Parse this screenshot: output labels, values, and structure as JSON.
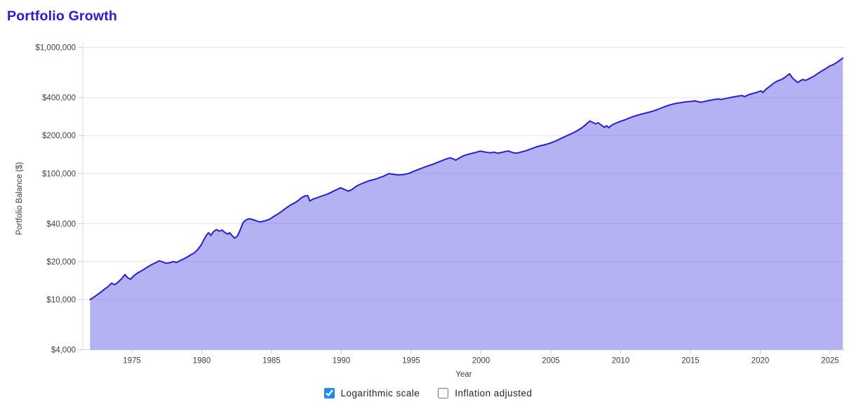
{
  "header": {
    "title": "Portfolio Growth"
  },
  "colors": {
    "title": "#2d16e0",
    "line": "#2620d6",
    "fill": "rgba(79,71,226,0.42)",
    "grid": "#e3e3ea",
    "axis_line": "#d9d9e2",
    "tick": "#c7c7d0",
    "label": "#3e3e48",
    "checkbox_accent": "#2189f3"
  },
  "controls": {
    "checkboxes": [
      {
        "label": "Logarithmic scale",
        "checked": true
      },
      {
        "label": "Inflation adjusted",
        "checked": false
      }
    ]
  },
  "chart_data": {
    "type": "area",
    "title": "Portfolio Growth",
    "xlabel": "Year",
    "ylabel": "Portfolio Balance ($)",
    "y_scale": "log",
    "grid": "horizontal-only",
    "legend": "none",
    "x_range": [
      1972,
      2026.2
    ],
    "y_range": [
      4000,
      1000000
    ],
    "x_ticks": [
      1975,
      1980,
      1985,
      1990,
      1995,
      2000,
      2005,
      2010,
      2015,
      2020,
      2025
    ],
    "y_ticks": [
      {
        "value": 1000000,
        "label": "$1,000,000"
      },
      {
        "value": 400000,
        "label": "$400,000"
      },
      {
        "value": 200000,
        "label": "$200,000"
      },
      {
        "value": 100000,
        "label": "$100,000"
      },
      {
        "value": 40000,
        "label": "$40,000"
      },
      {
        "value": 20000,
        "label": "$20,000"
      },
      {
        "value": 10000,
        "label": "$10,000"
      },
      {
        "value": 4000,
        "label": "$4,000"
      }
    ],
    "series": [
      {
        "name": "Portfolio Balance",
        "points": [
          [
            1972.0,
            10000
          ],
          [
            1972.25,
            10400
          ],
          [
            1972.5,
            10900
          ],
          [
            1972.75,
            11400
          ],
          [
            1973.0,
            12000
          ],
          [
            1973.3,
            12700
          ],
          [
            1973.55,
            13500
          ],
          [
            1973.75,
            13100
          ],
          [
            1974.0,
            13700
          ],
          [
            1974.25,
            14600
          ],
          [
            1974.5,
            15800
          ],
          [
            1974.7,
            14900
          ],
          [
            1974.9,
            14500
          ],
          [
            1975.1,
            15300
          ],
          [
            1975.35,
            16100
          ],
          [
            1975.6,
            16700
          ],
          [
            1975.85,
            17300
          ],
          [
            1976.1,
            18100
          ],
          [
            1976.4,
            18900
          ],
          [
            1976.7,
            19600
          ],
          [
            1976.95,
            20300
          ],
          [
            1977.2,
            19900
          ],
          [
            1977.45,
            19400
          ],
          [
            1977.7,
            19600
          ],
          [
            1977.95,
            20000
          ],
          [
            1978.2,
            19700
          ],
          [
            1978.45,
            20400
          ],
          [
            1978.7,
            21000
          ],
          [
            1978.95,
            21700
          ],
          [
            1979.2,
            22600
          ],
          [
            1979.45,
            23400
          ],
          [
            1979.7,
            24800
          ],
          [
            1979.95,
            27000
          ],
          [
            1980.15,
            29800
          ],
          [
            1980.35,
            32600
          ],
          [
            1980.5,
            33900
          ],
          [
            1980.65,
            32200
          ],
          [
            1980.85,
            34600
          ],
          [
            1981.05,
            35900
          ],
          [
            1981.25,
            34900
          ],
          [
            1981.45,
            35600
          ],
          [
            1981.65,
            34100
          ],
          [
            1981.85,
            33100
          ],
          [
            1982.0,
            33900
          ],
          [
            1982.15,
            32400
          ],
          [
            1982.35,
            30700
          ],
          [
            1982.55,
            31800
          ],
          [
            1982.75,
            35500
          ],
          [
            1982.95,
            40600
          ],
          [
            1983.15,
            42700
          ],
          [
            1983.4,
            43800
          ],
          [
            1983.65,
            43100
          ],
          [
            1983.9,
            42200
          ],
          [
            1984.15,
            41200
          ],
          [
            1984.4,
            41800
          ],
          [
            1984.65,
            42500
          ],
          [
            1984.9,
            43600
          ],
          [
            1985.15,
            45600
          ],
          [
            1985.4,
            47400
          ],
          [
            1985.65,
            49300
          ],
          [
            1985.9,
            51800
          ],
          [
            1986.15,
            54200
          ],
          [
            1986.4,
            56600
          ],
          [
            1986.65,
            58400
          ],
          [
            1986.9,
            60900
          ],
          [
            1987.15,
            64300
          ],
          [
            1987.4,
            66400
          ],
          [
            1987.6,
            66800
          ],
          [
            1987.75,
            60400
          ],
          [
            1987.95,
            62600
          ],
          [
            1988.2,
            63900
          ],
          [
            1988.45,
            65400
          ],
          [
            1988.7,
            66900
          ],
          [
            1988.95,
            68300
          ],
          [
            1989.2,
            70300
          ],
          [
            1989.45,
            72600
          ],
          [
            1989.7,
            74800
          ],
          [
            1989.95,
            77000
          ],
          [
            1990.25,
            74500
          ],
          [
            1990.5,
            72500
          ],
          [
            1990.75,
            74500
          ],
          [
            1991.0,
            78300
          ],
          [
            1991.25,
            81200
          ],
          [
            1991.5,
            83400
          ],
          [
            1991.75,
            85600
          ],
          [
            1992.0,
            87700
          ],
          [
            1992.25,
            89100
          ],
          [
            1992.5,
            90600
          ],
          [
            1992.75,
            92800
          ],
          [
            1993.0,
            94900
          ],
          [
            1993.2,
            97300
          ],
          [
            1993.4,
            99800
          ],
          [
            1993.6,
            99100
          ],
          [
            1993.85,
            98200
          ],
          [
            1994.1,
            97300
          ],
          [
            1994.35,
            97900
          ],
          [
            1994.6,
            98700
          ],
          [
            1994.85,
            100300
          ],
          [
            1995.1,
            103100
          ],
          [
            1995.35,
            105900
          ],
          [
            1995.6,
            108600
          ],
          [
            1995.85,
            111200
          ],
          [
            1996.1,
            113800
          ],
          [
            1996.35,
            116300
          ],
          [
            1996.6,
            118900
          ],
          [
            1996.85,
            121900
          ],
          [
            1997.1,
            125200
          ],
          [
            1997.35,
            128400
          ],
          [
            1997.6,
            131200
          ],
          [
            1997.8,
            133300
          ],
          [
            1998.0,
            130700
          ],
          [
            1998.2,
            127600
          ],
          [
            1998.45,
            132900
          ],
          [
            1998.7,
            137400
          ],
          [
            1998.95,
            140600
          ],
          [
            1999.2,
            143100
          ],
          [
            1999.45,
            145400
          ],
          [
            1999.7,
            147900
          ],
          [
            1999.95,
            150400
          ],
          [
            2000.2,
            148700
          ],
          [
            2000.45,
            146800
          ],
          [
            2000.7,
            145900
          ],
          [
            2000.95,
            147600
          ],
          [
            2001.2,
            144900
          ],
          [
            2001.45,
            146700
          ],
          [
            2001.7,
            148900
          ],
          [
            2001.95,
            150800
          ],
          [
            2002.2,
            147700
          ],
          [
            2002.45,
            144900
          ],
          [
            2002.7,
            146400
          ],
          [
            2002.95,
            148800
          ],
          [
            2003.2,
            151300
          ],
          [
            2003.45,
            154800
          ],
          [
            2003.7,
            158600
          ],
          [
            2003.95,
            162300
          ],
          [
            2004.2,
            165400
          ],
          [
            2004.45,
            167900
          ],
          [
            2004.7,
            170600
          ],
          [
            2004.95,
            173900
          ],
          [
            2005.2,
            178300
          ],
          [
            2005.45,
            183400
          ],
          [
            2005.7,
            188900
          ],
          [
            2005.95,
            194800
          ],
          [
            2006.2,
            200600
          ],
          [
            2006.45,
            206300
          ],
          [
            2006.7,
            212800
          ],
          [
            2006.95,
            220400
          ],
          [
            2007.2,
            229800
          ],
          [
            2007.45,
            241300
          ],
          [
            2007.65,
            252900
          ],
          [
            2007.8,
            260800
          ],
          [
            2008.0,
            254300
          ],
          [
            2008.2,
            247600
          ],
          [
            2008.4,
            252400
          ],
          [
            2008.6,
            242800
          ],
          [
            2008.85,
            232400
          ],
          [
            2009.0,
            238900
          ],
          [
            2009.15,
            230800
          ],
          [
            2009.35,
            241600
          ],
          [
            2009.6,
            248900
          ],
          [
            2009.85,
            255400
          ],
          [
            2010.1,
            261800
          ],
          [
            2010.35,
            267400
          ],
          [
            2010.6,
            274800
          ],
          [
            2010.85,
            281600
          ],
          [
            2011.1,
            287400
          ],
          [
            2011.35,
            292800
          ],
          [
            2011.6,
            297900
          ],
          [
            2011.85,
            302600
          ],
          [
            2012.1,
            307800
          ],
          [
            2012.35,
            313400
          ],
          [
            2012.6,
            320600
          ],
          [
            2012.85,
            328400
          ],
          [
            2013.1,
            336800
          ],
          [
            2013.35,
            344600
          ],
          [
            2013.6,
            351400
          ],
          [
            2013.85,
            357800
          ],
          [
            2014.1,
            361900
          ],
          [
            2014.35,
            365400
          ],
          [
            2014.6,
            368900
          ],
          [
            2014.85,
            371400
          ],
          [
            2015.1,
            373800
          ],
          [
            2015.35,
            376600
          ],
          [
            2015.55,
            370900
          ],
          [
            2015.8,
            367400
          ],
          [
            2016.0,
            372300
          ],
          [
            2016.25,
            377900
          ],
          [
            2016.5,
            382400
          ],
          [
            2016.75,
            386900
          ],
          [
            2017.0,
            390400
          ],
          [
            2017.2,
            386300
          ],
          [
            2017.45,
            391800
          ],
          [
            2017.7,
            396900
          ],
          [
            2017.95,
            402400
          ],
          [
            2018.2,
            407300
          ],
          [
            2018.45,
            411800
          ],
          [
            2018.7,
            415400
          ],
          [
            2018.9,
            406800
          ],
          [
            2019.1,
            418900
          ],
          [
            2019.35,
            427400
          ],
          [
            2019.6,
            434800
          ],
          [
            2019.85,
            443600
          ],
          [
            2020.05,
            452300
          ],
          [
            2020.2,
            438600
          ],
          [
            2020.4,
            465400
          ],
          [
            2020.65,
            487900
          ],
          [
            2020.85,
            508600
          ],
          [
            2021.05,
            528400
          ],
          [
            2021.3,
            545800
          ],
          [
            2021.55,
            558400
          ],
          [
            2021.8,
            581300
          ],
          [
            2022.0,
            606800
          ],
          [
            2022.1,
            617900
          ],
          [
            2022.3,
            573400
          ],
          [
            2022.55,
            541800
          ],
          [
            2022.7,
            527400
          ],
          [
            2022.9,
            546300
          ],
          [
            2023.05,
            556900
          ],
          [
            2023.25,
            547800
          ],
          [
            2023.45,
            561400
          ],
          [
            2023.65,
            575600
          ],
          [
            2023.85,
            592400
          ],
          [
            2024.05,
            612900
          ],
          [
            2024.25,
            634300
          ],
          [
            2024.45,
            655400
          ],
          [
            2024.65,
            673900
          ],
          [
            2024.85,
            697400
          ],
          [
            2025.0,
            714800
          ],
          [
            2025.15,
            722300
          ],
          [
            2025.3,
            738900
          ],
          [
            2025.5,
            762400
          ],
          [
            2025.7,
            789600
          ],
          [
            2025.85,
            812300
          ],
          [
            2025.92,
            823400
          ]
        ]
      }
    ]
  }
}
